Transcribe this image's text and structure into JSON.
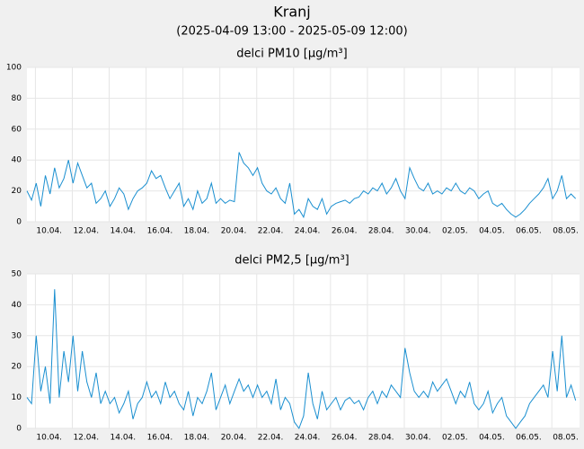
{
  "header": {
    "title": "Kranj",
    "subtitle": "(2025-04-09 13:00 - 2025-05-09 12:00)"
  },
  "chart_data": [
    {
      "type": "line",
      "title": "delci PM10 [µg/m³]",
      "color": "#1a8fd0",
      "grid": true,
      "x": [
        "2025-04-09 13:00",
        "2025-04-09 19:00",
        "2025-04-10 01:00",
        "2025-04-10 07:00",
        "2025-04-10 13:00",
        "2025-04-10 19:00",
        "2025-04-11 01:00",
        "2025-04-11 07:00",
        "2025-04-11 13:00",
        "2025-04-11 19:00",
        "2025-04-12 01:00",
        "2025-04-12 07:00",
        "2025-04-12 13:00",
        "2025-04-12 19:00",
        "2025-04-13 01:00",
        "2025-04-13 07:00",
        "2025-04-13 13:00",
        "2025-04-13 19:00",
        "2025-04-14 01:00",
        "2025-04-14 07:00",
        "2025-04-14 13:00",
        "2025-04-14 19:00",
        "2025-04-15 01:00",
        "2025-04-15 07:00",
        "2025-04-15 13:00",
        "2025-04-15 19:00",
        "2025-04-16 01:00",
        "2025-04-16 07:00",
        "2025-04-16 13:00",
        "2025-04-16 19:00",
        "2025-04-17 01:00",
        "2025-04-17 07:00",
        "2025-04-17 13:00",
        "2025-04-17 19:00",
        "2025-04-18 01:00",
        "2025-04-18 07:00",
        "2025-04-18 13:00",
        "2025-04-18 19:00",
        "2025-04-19 01:00",
        "2025-04-19 07:00",
        "2025-04-19 13:00",
        "2025-04-19 19:00",
        "2025-04-20 01:00",
        "2025-04-20 07:00",
        "2025-04-20 13:00",
        "2025-04-20 19:00",
        "2025-04-21 01:00",
        "2025-04-21 07:00",
        "2025-04-21 13:00",
        "2025-04-21 19:00",
        "2025-04-22 01:00",
        "2025-04-22 07:00",
        "2025-04-22 13:00",
        "2025-04-22 19:00",
        "2025-04-23 01:00",
        "2025-04-23 07:00",
        "2025-04-23 13:00",
        "2025-04-23 19:00",
        "2025-04-24 01:00",
        "2025-04-24 07:00",
        "2025-04-24 13:00",
        "2025-04-24 19:00",
        "2025-04-25 01:00",
        "2025-04-25 07:00",
        "2025-04-25 13:00",
        "2025-04-25 19:00",
        "2025-04-26 01:00",
        "2025-04-26 07:00",
        "2025-04-26 13:00",
        "2025-04-26 19:00",
        "2025-04-27 01:00",
        "2025-04-27 07:00",
        "2025-04-27 13:00",
        "2025-04-27 19:00",
        "2025-04-28 01:00",
        "2025-04-28 07:00",
        "2025-04-28 13:00",
        "2025-04-28 19:00",
        "2025-04-29 01:00",
        "2025-04-29 07:00",
        "2025-04-29 13:00",
        "2025-04-29 19:00",
        "2025-04-30 01:00",
        "2025-04-30 07:00",
        "2025-04-30 13:00",
        "2025-04-30 19:00",
        "2025-05-01 01:00",
        "2025-05-01 07:00",
        "2025-05-01 13:00",
        "2025-05-01 19:00",
        "2025-05-02 01:00",
        "2025-05-02 07:00",
        "2025-05-02 13:00",
        "2025-05-02 19:00",
        "2025-05-03 01:00",
        "2025-05-03 07:00",
        "2025-05-03 13:00",
        "2025-05-03 19:00",
        "2025-05-04 01:00",
        "2025-05-04 07:00",
        "2025-05-04 13:00",
        "2025-05-04 19:00",
        "2025-05-05 01:00",
        "2025-05-05 07:00",
        "2025-05-05 13:00",
        "2025-05-05 19:00",
        "2025-05-06 01:00",
        "2025-05-06 07:00",
        "2025-05-06 13:00",
        "2025-05-06 19:00",
        "2025-05-07 01:00",
        "2025-05-07 07:00",
        "2025-05-07 13:00",
        "2025-05-07 19:00",
        "2025-05-08 01:00",
        "2025-05-08 07:00",
        "2025-05-08 13:00",
        "2025-05-08 19:00",
        "2025-05-09 01:00",
        "2025-05-09 07:00"
      ],
      "values": [
        20,
        14,
        25,
        10,
        30,
        18,
        35,
        22,
        28,
        40,
        25,
        38,
        30,
        22,
        25,
        12,
        15,
        20,
        10,
        15,
        22,
        18,
        8,
        15,
        20,
        22,
        25,
        33,
        28,
        30,
        22,
        15,
        20,
        25,
        10,
        15,
        8,
        20,
        12,
        15,
        25,
        12,
        15,
        12,
        14,
        13,
        45,
        38,
        35,
        30,
        35,
        25,
        20,
        18,
        22,
        15,
        12,
        25,
        5,
        8,
        3,
        15,
        10,
        8,
        15,
        5,
        10,
        12,
        13,
        14,
        12,
        15,
        16,
        20,
        18,
        22,
        20,
        25,
        18,
        22,
        28,
        20,
        15,
        35,
        28,
        22,
        20,
        25,
        18,
        20,
        18,
        22,
        20,
        25,
        20,
        18,
        22,
        20,
        15,
        18,
        20,
        12,
        10,
        12,
        8,
        5,
        3,
        5,
        8,
        12,
        15,
        18,
        22,
        28,
        15,
        20,
        30,
        15,
        18,
        15
      ],
      "xlim": [
        "2025-04-09 13:00",
        "2025-05-09 12:00"
      ],
      "xticks": [
        {
          "value": "2025-04-10 00:00",
          "label": "10.04."
        },
        {
          "value": "2025-04-12 00:00",
          "label": "12.04."
        },
        {
          "value": "2025-04-14 00:00",
          "label": "14.04."
        },
        {
          "value": "2025-04-16 00:00",
          "label": "16.04."
        },
        {
          "value": "2025-04-18 00:00",
          "label": "18.04."
        },
        {
          "value": "2025-04-20 00:00",
          "label": "20.04."
        },
        {
          "value": "2025-04-22 00:00",
          "label": "22.04."
        },
        {
          "value": "2025-04-24 00:00",
          "label": "24.04."
        },
        {
          "value": "2025-04-26 00:00",
          "label": "26.04."
        },
        {
          "value": "2025-04-28 00:00",
          "label": "28.04."
        },
        {
          "value": "2025-04-30 00:00",
          "label": "30.04."
        },
        {
          "value": "2025-05-02 00:00",
          "label": "02.05."
        },
        {
          "value": "2025-05-04 00:00",
          "label": "04.05."
        },
        {
          "value": "2025-05-06 00:00",
          "label": "06.05."
        },
        {
          "value": "2025-05-08 00:00",
          "label": "08.05."
        }
      ],
      "ylim": [
        0,
        100
      ],
      "yticks": [
        0,
        20,
        40,
        60,
        80,
        100
      ]
    },
    {
      "type": "line",
      "title": "delci PM2,5 [µg/m³]",
      "color": "#1a8fd0",
      "grid": true,
      "x": [
        "2025-04-09 13:00",
        "2025-04-09 19:00",
        "2025-04-10 01:00",
        "2025-04-10 07:00",
        "2025-04-10 13:00",
        "2025-04-10 19:00",
        "2025-04-11 01:00",
        "2025-04-11 07:00",
        "2025-04-11 13:00",
        "2025-04-11 19:00",
        "2025-04-12 01:00",
        "2025-04-12 07:00",
        "2025-04-12 13:00",
        "2025-04-12 19:00",
        "2025-04-13 01:00",
        "2025-04-13 07:00",
        "2025-04-13 13:00",
        "2025-04-13 19:00",
        "2025-04-14 01:00",
        "2025-04-14 07:00",
        "2025-04-14 13:00",
        "2025-04-14 19:00",
        "2025-04-15 01:00",
        "2025-04-15 07:00",
        "2025-04-15 13:00",
        "2025-04-15 19:00",
        "2025-04-16 01:00",
        "2025-04-16 07:00",
        "2025-04-16 13:00",
        "2025-04-16 19:00",
        "2025-04-17 01:00",
        "2025-04-17 07:00",
        "2025-04-17 13:00",
        "2025-04-17 19:00",
        "2025-04-18 01:00",
        "2025-04-18 07:00",
        "2025-04-18 13:00",
        "2025-04-18 19:00",
        "2025-04-19 01:00",
        "2025-04-19 07:00",
        "2025-04-19 13:00",
        "2025-04-19 19:00",
        "2025-04-20 01:00",
        "2025-04-20 07:00",
        "2025-04-20 13:00",
        "2025-04-20 19:00",
        "2025-04-21 01:00",
        "2025-04-21 07:00",
        "2025-04-21 13:00",
        "2025-04-21 19:00",
        "2025-04-22 01:00",
        "2025-04-22 07:00",
        "2025-04-22 13:00",
        "2025-04-22 19:00",
        "2025-04-23 01:00",
        "2025-04-23 07:00",
        "2025-04-23 13:00",
        "2025-04-23 19:00",
        "2025-04-24 01:00",
        "2025-04-24 07:00",
        "2025-04-24 13:00",
        "2025-04-24 19:00",
        "2025-04-25 01:00",
        "2025-04-25 07:00",
        "2025-04-25 13:00",
        "2025-04-25 19:00",
        "2025-04-26 01:00",
        "2025-04-26 07:00",
        "2025-04-26 13:00",
        "2025-04-26 19:00",
        "2025-04-27 01:00",
        "2025-04-27 07:00",
        "2025-04-27 13:00",
        "2025-04-27 19:00",
        "2025-04-28 01:00",
        "2025-04-28 07:00",
        "2025-04-28 13:00",
        "2025-04-28 19:00",
        "2025-04-29 01:00",
        "2025-04-29 07:00",
        "2025-04-29 13:00",
        "2025-04-29 19:00",
        "2025-04-30 01:00",
        "2025-04-30 07:00",
        "2025-04-30 13:00",
        "2025-04-30 19:00",
        "2025-05-01 01:00",
        "2025-05-01 07:00",
        "2025-05-01 13:00",
        "2025-05-01 19:00",
        "2025-05-02 01:00",
        "2025-05-02 07:00",
        "2025-05-02 13:00",
        "2025-05-02 19:00",
        "2025-05-03 01:00",
        "2025-05-03 07:00",
        "2025-05-03 13:00",
        "2025-05-03 19:00",
        "2025-05-04 01:00",
        "2025-05-04 07:00",
        "2025-05-04 13:00",
        "2025-05-04 19:00",
        "2025-05-05 01:00",
        "2025-05-05 07:00",
        "2025-05-05 13:00",
        "2025-05-05 19:00",
        "2025-05-06 01:00",
        "2025-05-06 07:00",
        "2025-05-06 13:00",
        "2025-05-06 19:00",
        "2025-05-07 01:00",
        "2025-05-07 07:00",
        "2025-05-07 13:00",
        "2025-05-07 19:00",
        "2025-05-08 01:00",
        "2025-05-08 07:00",
        "2025-05-08 13:00",
        "2025-05-08 19:00",
        "2025-05-09 01:00",
        "2025-05-09 07:00"
      ],
      "values": [
        10,
        8,
        30,
        12,
        20,
        8,
        45,
        10,
        25,
        15,
        30,
        12,
        25,
        15,
        10,
        18,
        8,
        12,
        8,
        10,
        5,
        8,
        12,
        3,
        8,
        10,
        15,
        10,
        12,
        8,
        15,
        10,
        12,
        8,
        6,
        12,
        4,
        10,
        8,
        12,
        18,
        6,
        10,
        14,
        8,
        12,
        16,
        12,
        14,
        10,
        14,
        10,
        12,
        8,
        16,
        6,
        10,
        8,
        2,
        0,
        4,
        18,
        8,
        3,
        12,
        6,
        8,
        10,
        6,
        9,
        10,
        8,
        9,
        6,
        10,
        12,
        8,
        12,
        10,
        14,
        12,
        10,
        26,
        18,
        12,
        10,
        12,
        10,
        15,
        12,
        14,
        16,
        12,
        8,
        12,
        10,
        15,
        8,
        6,
        8,
        12,
        5,
        8,
        10,
        4,
        2,
        0,
        2,
        4,
        8,
        10,
        12,
        14,
        10,
        25,
        12,
        30,
        10,
        14,
        9
      ],
      "xlim": [
        "2025-04-09 13:00",
        "2025-05-09 12:00"
      ],
      "xticks": [
        {
          "value": "2025-04-10 00:00",
          "label": "10.04."
        },
        {
          "value": "2025-04-12 00:00",
          "label": "12.04."
        },
        {
          "value": "2025-04-14 00:00",
          "label": "14.04."
        },
        {
          "value": "2025-04-16 00:00",
          "label": "16.04."
        },
        {
          "value": "2025-04-18 00:00",
          "label": "18.04."
        },
        {
          "value": "2025-04-20 00:00",
          "label": "20.04."
        },
        {
          "value": "2025-04-22 00:00",
          "label": "22.04."
        },
        {
          "value": "2025-04-24 00:00",
          "label": "24.04."
        },
        {
          "value": "2025-04-26 00:00",
          "label": "26.04."
        },
        {
          "value": "2025-04-28 00:00",
          "label": "28.04."
        },
        {
          "value": "2025-04-30 00:00",
          "label": "30.04."
        },
        {
          "value": "2025-05-02 00:00",
          "label": "02.05."
        },
        {
          "value": "2025-05-04 00:00",
          "label": "04.05."
        },
        {
          "value": "2025-05-06 00:00",
          "label": "06.05."
        },
        {
          "value": "2025-05-08 00:00",
          "label": "08.05."
        }
      ],
      "ylim": [
        0,
        50
      ],
      "yticks": [
        0,
        10,
        20,
        30,
        40,
        50
      ]
    }
  ]
}
